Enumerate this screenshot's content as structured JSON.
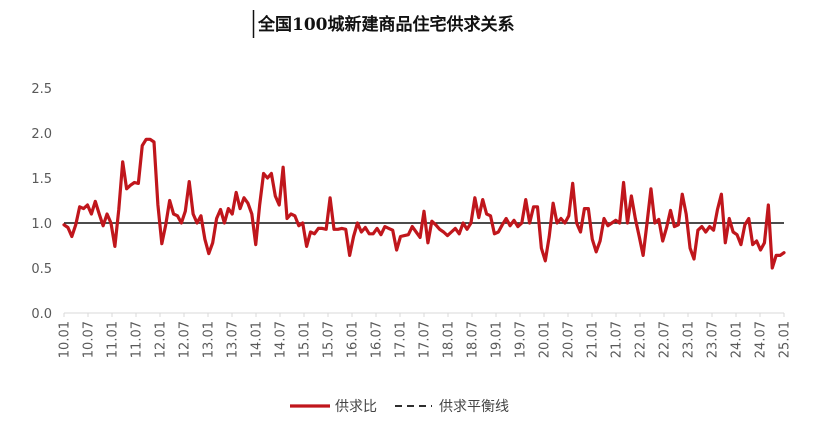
{
  "chart_data": {
    "type": "line",
    "title": "全国100城新建商品住宅供求关系",
    "xlabel": "",
    "ylabel": "",
    "ylim": [
      0,
      2.5
    ],
    "yticks": [
      "0.0",
      "0.5",
      "1.0",
      "1.5",
      "2.0",
      "2.5"
    ],
    "x_tick_labels": [
      "10.01",
      "10.07",
      "11.01",
      "11.07",
      "12.01",
      "12.07",
      "13.01",
      "13.07",
      "14.01",
      "14.07",
      "15.01",
      "15.07",
      "16.01",
      "16.07",
      "17.01",
      "17.07",
      "18.01",
      "18.07",
      "19.01",
      "19.07",
      "20.01",
      "20.07",
      "21.01",
      "21.07",
      "22.01",
      "22.07",
      "23.01",
      "23.07",
      "24.01",
      "24.07",
      "25.01"
    ],
    "months_per_tick": 6,
    "grid": false,
    "legend_position": "bottom",
    "series": [
      {
        "name": "供求比",
        "color": "#c0161c",
        "style": "solid",
        "values": [
          0.98,
          0.95,
          0.85,
          0.98,
          1.18,
          1.16,
          1.2,
          1.1,
          1.24,
          1.1,
          0.97,
          1.1,
          1.0,
          0.74,
          1.15,
          1.68,
          1.38,
          1.42,
          1.45,
          1.44,
          1.86,
          1.93,
          1.93,
          1.9,
          1.2,
          0.77,
          0.98,
          1.25,
          1.1,
          1.08,
          1.0,
          1.13,
          1.46,
          1.1,
          1.0,
          1.08,
          0.82,
          0.66,
          0.78,
          1.05,
          1.15,
          1.0,
          1.16,
          1.1,
          1.34,
          1.16,
          1.28,
          1.22,
          1.1,
          0.76,
          1.2,
          1.55,
          1.5,
          1.55,
          1.3,
          1.2,
          1.62,
          1.05,
          1.1,
          1.08,
          0.97,
          1.0,
          0.74,
          0.9,
          0.88,
          0.94,
          0.94,
          0.93,
          1.28,
          0.93,
          0.93,
          0.94,
          0.93,
          0.64,
          0.85,
          1.0,
          0.9,
          0.95,
          0.88,
          0.88,
          0.94,
          0.87,
          0.96,
          0.94,
          0.92,
          0.7,
          0.85,
          0.86,
          0.87,
          0.96,
          0.9,
          0.84,
          1.13,
          0.78,
          1.02,
          0.98,
          0.93,
          0.9,
          0.86,
          0.9,
          0.94,
          0.88,
          1.0,
          0.93,
          1.0,
          1.28,
          1.06,
          1.26,
          1.1,
          1.08,
          0.88,
          0.9,
          0.98,
          1.05,
          0.97,
          1.03,
          0.96,
          1.0,
          1.26,
          1.0,
          1.18,
          1.18,
          0.72,
          0.58,
          0.85,
          1.22,
          1.0,
          1.05,
          1.0,
          1.08,
          1.44,
          1.0,
          0.9,
          1.16,
          1.16,
          0.82,
          0.68,
          0.8,
          1.05,
          0.97,
          1.0,
          1.03,
          1.0,
          1.45,
          1.0,
          1.3,
          1.05,
          0.85,
          0.64,
          1.0,
          1.38,
          1.0,
          1.04,
          0.8,
          0.95,
          1.14,
          0.96,
          0.98,
          1.32,
          1.1,
          0.72,
          0.6,
          0.92,
          0.96,
          0.9,
          0.96,
          0.92,
          1.15,
          1.32,
          0.78,
          1.05,
          0.9,
          0.87,
          0.76,
          0.98,
          1.05,
          0.76,
          0.8,
          0.7,
          0.78,
          1.2,
          0.5,
          0.64,
          0.64,
          0.67
        ]
      },
      {
        "name": "供求平衡线",
        "color": "#111111",
        "style": "dashed",
        "constant": 1.0
      }
    ]
  }
}
